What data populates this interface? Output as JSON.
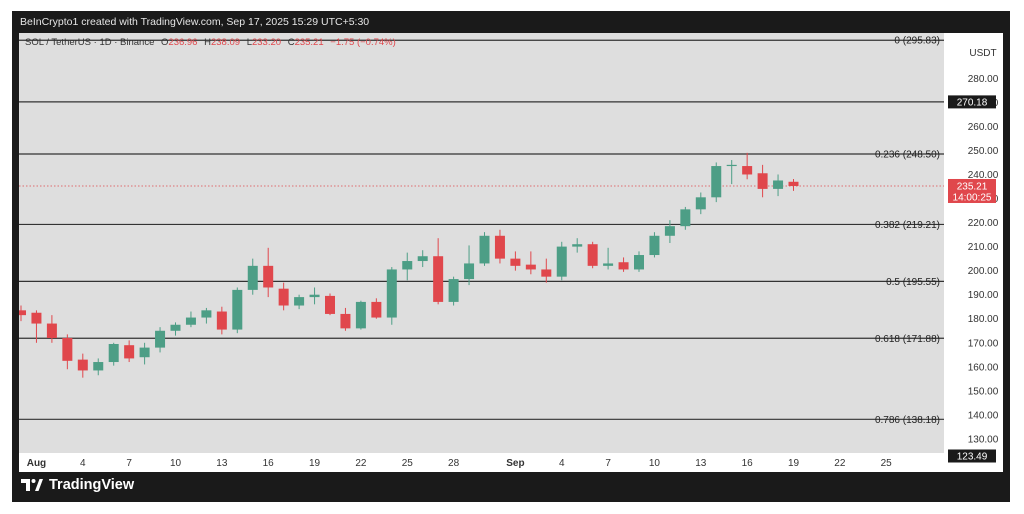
{
  "header": {
    "credit": "BeInCrypto1 created with TradingView.com, Sep 17, 2025 15:29 UTC+5:30"
  },
  "legend": {
    "symbol": "SOL / TetherUS · 1D · Binance",
    "open_label": "O",
    "open": "236.96",
    "high_label": "H",
    "high": "238.09",
    "low_label": "L",
    "low": "233.20",
    "close_label": "C",
    "close": "235.21",
    "change": "−1.75 (−0.74%)"
  },
  "footer": {
    "brand": "TradingView"
  },
  "colors": {
    "up": "#4d9e86",
    "down": "#e0474c",
    "background": "#dedede",
    "frame": "#1a1a1a"
  },
  "chart_data": {
    "type": "candlestick",
    "axis_currency": "USDT",
    "ylim": [
      125,
      298
    ],
    "y_ticks": [
      280,
      270,
      260,
      250,
      240,
      230,
      220,
      210,
      200,
      190,
      180,
      170,
      160,
      150,
      140,
      130
    ],
    "y_tick_labels": [
      "280.00",
      "270.00",
      "260.00",
      "250.00",
      "240.00",
      "230.00",
      "220.00",
      "210.00",
      "200.00",
      "190.00",
      "180.00",
      "170.00",
      "160.00",
      "150.00",
      "140.00",
      "130.00"
    ],
    "x_ticks": [
      {
        "day": 1,
        "label": "Aug"
      },
      {
        "day": 4,
        "label": "4"
      },
      {
        "day": 7,
        "label": "7"
      },
      {
        "day": 10,
        "label": "10"
      },
      {
        "day": 13,
        "label": "13"
      },
      {
        "day": 16,
        "label": "16"
      },
      {
        "day": 19,
        "label": "19"
      },
      {
        "day": 22,
        "label": "22"
      },
      {
        "day": 25,
        "label": "25"
      },
      {
        "day": 28,
        "label": "28"
      },
      {
        "day": 32,
        "label": "Sep"
      },
      {
        "day": 35,
        "label": "4"
      },
      {
        "day": 38,
        "label": "7"
      },
      {
        "day": 41,
        "label": "10"
      },
      {
        "day": 44,
        "label": "13"
      },
      {
        "day": 47,
        "label": "16"
      },
      {
        "day": 50,
        "label": "19"
      },
      {
        "day": 53,
        "label": "22"
      },
      {
        "day": 56,
        "label": "25"
      }
    ],
    "fib_levels": [
      {
        "ratio": "0",
        "price": 295.83,
        "label": "0 (295.83)"
      },
      {
        "ratio": "0.236",
        "price": 248.5,
        "label": "0.236 (248.50)"
      },
      {
        "ratio": "0.382",
        "price": 219.21,
        "label": "0.382 (219.21)"
      },
      {
        "ratio": "0.5",
        "price": 195.55,
        "label": "0.5 (195.55)"
      },
      {
        "ratio": "0.618",
        "price": 171.88,
        "label": "0.618 (171.88)"
      },
      {
        "ratio": "0.786",
        "price": 138.18,
        "label": "0.786 (138.18)"
      }
    ],
    "price_tags": [
      {
        "price": 270.18,
        "label": "270.18",
        "style": "dark"
      },
      {
        "price": 123.49,
        "label": "123.49",
        "style": "dark"
      }
    ],
    "current_price": {
      "price": 235.21,
      "label": "235.21",
      "countdown": "14:00:25"
    },
    "candles": [
      {
        "day": 0,
        "o": 183.5,
        "h": 185.5,
        "l": 179.0,
        "c": 181.5
      },
      {
        "day": 1,
        "o": 182.5,
        "h": 183.5,
        "l": 170.0,
        "c": 178.0
      },
      {
        "day": 2,
        "o": 178.0,
        "h": 181.5,
        "l": 170.0,
        "c": 172.0
      },
      {
        "day": 3,
        "o": 172.0,
        "h": 173.5,
        "l": 159.0,
        "c": 162.5
      },
      {
        "day": 4,
        "o": 163.0,
        "h": 165.5,
        "l": 155.5,
        "c": 158.5
      },
      {
        "day": 5,
        "o": 158.5,
        "h": 163.5,
        "l": 156.5,
        "c": 162.0
      },
      {
        "day": 6,
        "o": 162.0,
        "h": 170.0,
        "l": 160.5,
        "c": 169.5
      },
      {
        "day": 7,
        "o": 169.0,
        "h": 171.0,
        "l": 162.0,
        "c": 163.5
      },
      {
        "day": 8,
        "o": 164.0,
        "h": 170.0,
        "l": 161.0,
        "c": 168.0
      },
      {
        "day": 9,
        "o": 168.0,
        "h": 176.5,
        "l": 166.0,
        "c": 175.0
      },
      {
        "day": 10,
        "o": 175.0,
        "h": 178.5,
        "l": 173.0,
        "c": 177.5
      },
      {
        "day": 11,
        "o": 177.5,
        "h": 183.0,
        "l": 176.5,
        "c": 180.5
      },
      {
        "day": 12,
        "o": 180.5,
        "h": 184.5,
        "l": 178.0,
        "c": 183.5
      },
      {
        "day": 13,
        "o": 183.0,
        "h": 185.0,
        "l": 173.5,
        "c": 175.5
      },
      {
        "day": 14,
        "o": 175.5,
        "h": 193.0,
        "l": 174.0,
        "c": 192.0
      },
      {
        "day": 15,
        "o": 192.0,
        "h": 205.0,
        "l": 190.0,
        "c": 202.0
      },
      {
        "day": 16,
        "o": 202.0,
        "h": 209.5,
        "l": 189.0,
        "c": 193.0
      },
      {
        "day": 17,
        "o": 192.5,
        "h": 195.0,
        "l": 183.5,
        "c": 185.5
      },
      {
        "day": 18,
        "o": 185.5,
        "h": 190.0,
        "l": 184.0,
        "c": 189.0
      },
      {
        "day": 19,
        "o": 189.0,
        "h": 193.0,
        "l": 186.0,
        "c": 190.0
      },
      {
        "day": 20,
        "o": 189.5,
        "h": 190.5,
        "l": 181.5,
        "c": 182.0
      },
      {
        "day": 21,
        "o": 182.0,
        "h": 184.5,
        "l": 175.0,
        "c": 176.0
      },
      {
        "day": 22,
        "o": 176.0,
        "h": 187.5,
        "l": 175.5,
        "c": 187.0
      },
      {
        "day": 23,
        "o": 187.0,
        "h": 188.5,
        "l": 180.0,
        "c": 180.5
      },
      {
        "day": 24,
        "o": 180.5,
        "h": 201.5,
        "l": 177.5,
        "c": 200.5
      },
      {
        "day": 25,
        "o": 200.5,
        "h": 207.5,
        "l": 196.0,
        "c": 204.0
      },
      {
        "day": 26,
        "o": 204.0,
        "h": 208.5,
        "l": 201.5,
        "c": 206.0
      },
      {
        "day": 27,
        "o": 206.0,
        "h": 213.5,
        "l": 186.0,
        "c": 187.0
      },
      {
        "day": 28,
        "o": 187.0,
        "h": 197.5,
        "l": 185.5,
        "c": 196.5
      },
      {
        "day": 29,
        "o": 196.5,
        "h": 210.5,
        "l": 194.0,
        "c": 203.0
      },
      {
        "day": 30,
        "o": 203.0,
        "h": 216.0,
        "l": 202.0,
        "c": 214.5
      },
      {
        "day": 31,
        "o": 214.5,
        "h": 217.0,
        "l": 203.0,
        "c": 205.0
      },
      {
        "day": 32,
        "o": 205.0,
        "h": 208.0,
        "l": 200.0,
        "c": 202.0
      },
      {
        "day": 33,
        "o": 202.5,
        "h": 208.0,
        "l": 198.5,
        "c": 200.5
      },
      {
        "day": 34,
        "o": 200.5,
        "h": 205.0,
        "l": 195.0,
        "c": 197.5
      },
      {
        "day": 35,
        "o": 197.5,
        "h": 212.0,
        "l": 196.0,
        "c": 210.0
      },
      {
        "day": 36,
        "o": 210.0,
        "h": 213.5,
        "l": 207.5,
        "c": 211.0
      },
      {
        "day": 37,
        "o": 211.0,
        "h": 212.0,
        "l": 201.0,
        "c": 202.0
      },
      {
        "day": 38,
        "o": 202.0,
        "h": 209.5,
        "l": 200.5,
        "c": 203.0
      },
      {
        "day": 39,
        "o": 203.5,
        "h": 205.5,
        "l": 199.5,
        "c": 200.5
      },
      {
        "day": 40,
        "o": 200.5,
        "h": 208.0,
        "l": 199.5,
        "c": 206.5
      },
      {
        "day": 41,
        "o": 206.5,
        "h": 216.0,
        "l": 205.5,
        "c": 214.5
      },
      {
        "day": 42,
        "o": 214.5,
        "h": 221.0,
        "l": 211.5,
        "c": 218.5
      },
      {
        "day": 43,
        "o": 218.5,
        "h": 226.5,
        "l": 217.0,
        "c": 225.5
      },
      {
        "day": 44,
        "o": 225.5,
        "h": 232.5,
        "l": 223.5,
        "c": 230.5
      },
      {
        "day": 45,
        "o": 230.5,
        "h": 245.0,
        "l": 228.5,
        "c": 243.5
      },
      {
        "day": 46,
        "o": 243.5,
        "h": 246.0,
        "l": 236.0,
        "c": 244.0
      },
      {
        "day": 47,
        "o": 243.5,
        "h": 249.0,
        "l": 238.0,
        "c": 240.0
      },
      {
        "day": 48,
        "o": 240.5,
        "h": 244.0,
        "l": 230.5,
        "c": 234.0
      },
      {
        "day": 49,
        "o": 234.0,
        "h": 240.0,
        "l": 231.0,
        "c": 237.5
      },
      {
        "day": 50,
        "o": 236.96,
        "h": 238.09,
        "l": 233.2,
        "c": 235.21
      }
    ]
  }
}
